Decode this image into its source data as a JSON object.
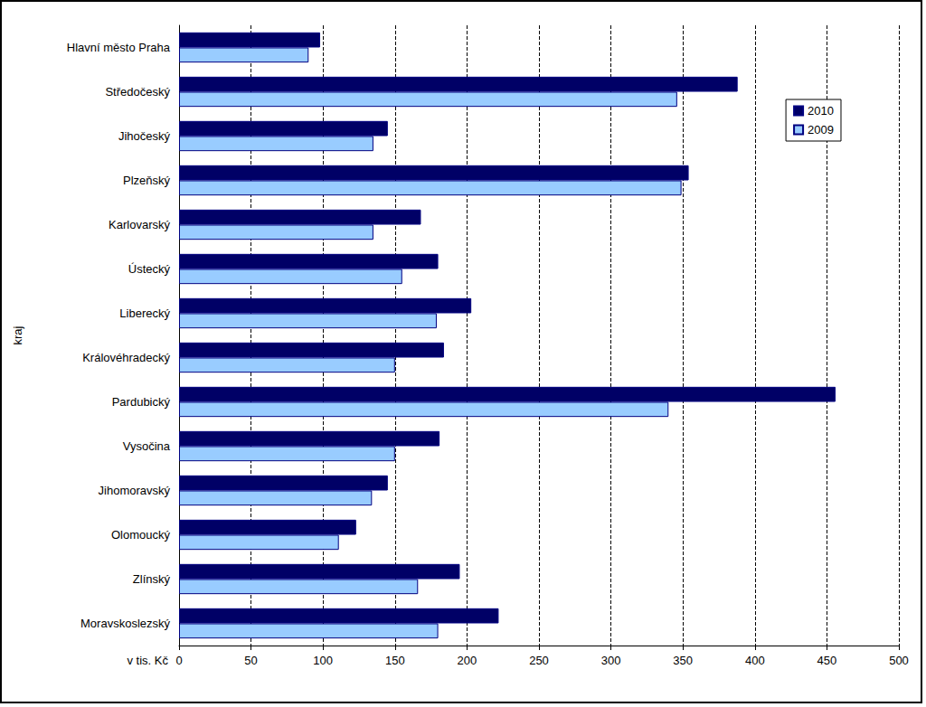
{
  "chart_data": {
    "type": "bar",
    "orientation": "horizontal",
    "categories": [
      "Hlavní město Praha",
      "Středočeský",
      "Jihočeský",
      "Plzeňský",
      "Karlovarský",
      "Ústecký",
      "Liberecký",
      "Královéhradecký",
      "Pardubický",
      "Vysočina",
      "Jihomoravský",
      "Olomoucký",
      "Zlínský",
      "Moravskoslezský"
    ],
    "series": [
      {
        "name": "2010",
        "color": "#000066",
        "values": [
          98,
          388,
          145,
          354,
          168,
          180,
          203,
          184,
          456,
          181,
          145,
          123,
          195,
          222
        ]
      },
      {
        "name": "2009",
        "color": "#99ccff",
        "values": [
          90,
          346,
          135,
          349,
          135,
          155,
          179,
          150,
          340,
          150,
          134,
          111,
          166,
          180
        ]
      }
    ],
    "xlabel": "v tis. Kč",
    "ylabel": "kraj",
    "xlim": [
      0,
      500
    ],
    "xticks": [
      0,
      50,
      100,
      150,
      200,
      250,
      300,
      350,
      400,
      450,
      500
    ],
    "grid": true,
    "legend": "upper right"
  }
}
